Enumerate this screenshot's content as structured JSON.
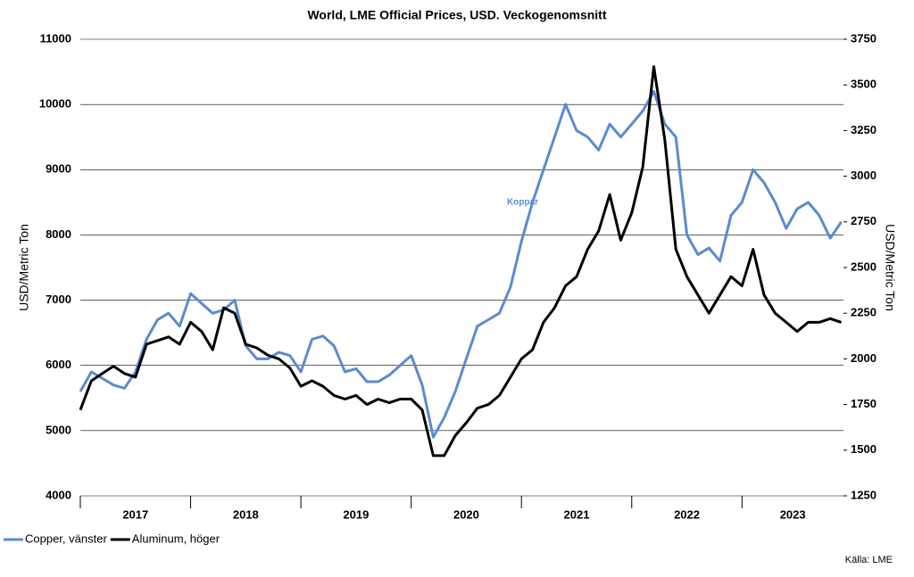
{
  "chart_data": {
    "type": "line",
    "title": "World, LME Official Prices, USD. Veckogenomsnitt",
    "y_label": "USD/Metric Ton",
    "y2_label": "USD/Metric Ton",
    "annotation": "Koppar",
    "source": "Källa: LME",
    "x": [
      2017.0,
      2017.1,
      2017.2,
      2017.3,
      2017.4,
      2017.5,
      2017.6,
      2017.7,
      2017.8,
      2017.9,
      2018.0,
      2018.1,
      2018.2,
      2018.3,
      2018.4,
      2018.5,
      2018.6,
      2018.7,
      2018.8,
      2018.9,
      2019.0,
      2019.1,
      2019.2,
      2019.3,
      2019.4,
      2019.5,
      2019.6,
      2019.7,
      2019.8,
      2019.9,
      2020.0,
      2020.1,
      2020.2,
      2020.3,
      2020.4,
      2020.5,
      2020.6,
      2020.7,
      2020.8,
      2020.9,
      2021.0,
      2021.1,
      2021.2,
      2021.3,
      2021.4,
      2021.5,
      2021.6,
      2021.7,
      2021.8,
      2021.9,
      2022.0,
      2022.1,
      2022.2,
      2022.3,
      2022.4,
      2022.5,
      2022.6,
      2022.7,
      2022.8,
      2022.9,
      2023.0,
      2023.1,
      2023.2,
      2023.3,
      2023.4,
      2023.5,
      2023.6,
      2023.7,
      2023.8,
      2023.9
    ],
    "series": [
      {
        "name": "Copper, vänster",
        "color": "#5b8bd0",
        "values": [
          5600,
          5900,
          5800,
          5700,
          5650,
          5900,
          6400,
          6700,
          6800,
          6600,
          7100,
          6950,
          6800,
          6850,
          7000,
          6300,
          6100,
          6100,
          6200,
          6150,
          5900,
          6400,
          6450,
          6300,
          5900,
          5950,
          5750,
          5750,
          5850,
          6000,
          6150,
          5700,
          4900,
          5200,
          5600,
          6100,
          6600,
          6700,
          6800,
          7200,
          7900,
          8500,
          9000,
          9500,
          10000,
          9600,
          9500,
          9300,
          9700,
          9500,
          9700,
          9900,
          10200,
          9700,
          9500,
          8000,
          7700,
          7800,
          7600,
          8300,
          8500,
          9000,
          8800,
          8500,
          8100,
          8400,
          8500,
          8300,
          7950,
          8200
        ]
      },
      {
        "name": "Aluminum, höger",
        "color": "#000000",
        "axis": "y2",
        "values": [
          1720,
          1880,
          1920,
          1960,
          1920,
          1900,
          2080,
          2100,
          2120,
          2080,
          2200,
          2150,
          2050,
          2280,
          2250,
          2080,
          2060,
          2020,
          2000,
          1950,
          1850,
          1880,
          1850,
          1800,
          1780,
          1800,
          1750,
          1780,
          1760,
          1780,
          1780,
          1720,
          1470,
          1470,
          1580,
          1650,
          1730,
          1750,
          1800,
          1900,
          2000,
          2050,
          2200,
          2280,
          2400,
          2450,
          2600,
          2700,
          2900,
          2650,
          2800,
          3050,
          3600,
          3200,
          2600,
          2450,
          2350,
          2250,
          2350,
          2450,
          2400,
          2600,
          2350,
          2250,
          2200,
          2150,
          2200,
          2200,
          2220,
          2200
        ]
      }
    ],
    "xlim": [
      2017,
      2023.92
    ],
    "xticks": [
      {
        "value": 2017,
        "label": "2017"
      },
      {
        "value": 2018,
        "label": "2018"
      },
      {
        "value": 2019,
        "label": "2019"
      },
      {
        "value": 2020,
        "label": "2020"
      },
      {
        "value": 2021,
        "label": "2021"
      },
      {
        "value": 2022,
        "label": "2022"
      },
      {
        "value": 2023,
        "label": "2023"
      }
    ],
    "ylim": [
      4000,
      11000
    ],
    "yticks": [
      4000,
      5000,
      6000,
      7000,
      8000,
      9000,
      10000,
      11000
    ],
    "y2lim": [
      1250,
      3750
    ],
    "y2ticks": [
      1250,
      1500,
      1750,
      2000,
      2250,
      2500,
      2750,
      3000,
      3250,
      3500,
      3750
    ],
    "grid": true,
    "legend": "bottom-left"
  }
}
